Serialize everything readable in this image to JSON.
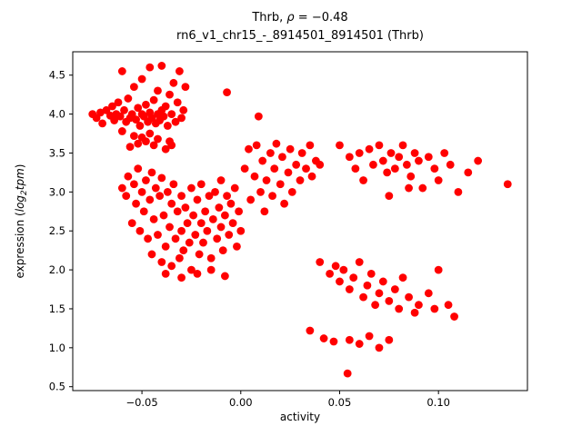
{
  "chart_data": {
    "type": "scatter",
    "title_parts": {
      "prefix": "Thrb, ",
      "rho": "ρ",
      "suffix": " = −0.48"
    },
    "subtitle": "rn6_v1_chr15_-_8914501_8914501 (Thrb)",
    "xlabel": "activity",
    "ylabel_parts": {
      "prefix": "expression (",
      "math": "log",
      "sub": "2",
      "math2": "tpm",
      "suffix": ")"
    },
    "xlim": [
      -0.085,
      0.145
    ],
    "ylim": [
      0.45,
      4.8
    ],
    "x_ticks": [
      {
        "v": -0.05,
        "label": "−0.05"
      },
      {
        "v": 0.0,
        "label": "0.00"
      },
      {
        "v": 0.05,
        "label": "0.05"
      },
      {
        "v": 0.1,
        "label": "0.10"
      }
    ],
    "y_ticks": [
      {
        "v": 0.5,
        "label": "0.5"
      },
      {
        "v": 1.0,
        "label": "1.0"
      },
      {
        "v": 1.5,
        "label": "1.5"
      },
      {
        "v": 2.0,
        "label": "2.0"
      },
      {
        "v": 2.5,
        "label": "2.5"
      },
      {
        "v": 3.0,
        "label": "3.0"
      },
      {
        "v": 3.5,
        "label": "3.5"
      },
      {
        "v": 4.0,
        "label": "4.0"
      },
      {
        "v": 4.5,
        "label": "4.5"
      }
    ],
    "grid": false,
    "legend": "none",
    "marker_color": "#ff0000",
    "marker_radius": 4.4,
    "points": [
      [
        -0.075,
        4.0
      ],
      [
        -0.073,
        3.95
      ],
      [
        -0.071,
        4.02
      ],
      [
        -0.07,
        3.88
      ],
      [
        -0.068,
        4.05
      ],
      [
        -0.066,
        3.98
      ],
      [
        -0.065,
        4.1
      ],
      [
        -0.064,
        3.92
      ],
      [
        -0.063,
        4.0
      ],
      [
        -0.062,
        4.15
      ],
      [
        -0.061,
        3.97
      ],
      [
        -0.06,
        4.55
      ],
      [
        -0.059,
        4.05
      ],
      [
        -0.058,
        3.9
      ],
      [
        -0.057,
        4.2
      ],
      [
        -0.056,
        3.95
      ],
      [
        -0.055,
        4.0
      ],
      [
        -0.054,
        4.35
      ],
      [
        -0.053,
        3.93
      ],
      [
        -0.052,
        4.08
      ],
      [
        -0.051,
        3.85
      ],
      [
        -0.05,
        4.0
      ],
      [
        -0.05,
        4.45
      ],
      [
        -0.049,
        3.97
      ],
      [
        -0.048,
        4.12
      ],
      [
        -0.047,
        3.9
      ],
      [
        -0.046,
        4.6
      ],
      [
        -0.046,
        4.02
      ],
      [
        -0.045,
        3.95
      ],
      [
        -0.044,
        4.18
      ],
      [
        -0.043,
        3.88
      ],
      [
        -0.042,
        4.3
      ],
      [
        -0.042,
        4.0
      ],
      [
        -0.041,
        3.92
      ],
      [
        -0.04,
        4.62
      ],
      [
        -0.04,
        4.05
      ],
      [
        -0.039,
        3.97
      ],
      [
        -0.038,
        4.1
      ],
      [
        -0.037,
        3.85
      ],
      [
        -0.036,
        4.25
      ],
      [
        -0.035,
        4.0
      ],
      [
        -0.034,
        4.4
      ],
      [
        -0.033,
        3.9
      ],
      [
        -0.032,
        4.15
      ],
      [
        -0.031,
        4.55
      ],
      [
        -0.03,
        3.95
      ],
      [
        -0.029,
        4.05
      ],
      [
        -0.028,
        4.35
      ],
      [
        -0.05,
        3.7
      ],
      [
        -0.048,
        3.65
      ],
      [
        -0.046,
        3.75
      ],
      [
        -0.044,
        3.6
      ],
      [
        -0.042,
        3.68
      ],
      [
        -0.052,
        3.62
      ],
      [
        -0.054,
        3.72
      ],
      [
        -0.056,
        3.58
      ],
      [
        -0.038,
        3.55
      ],
      [
        -0.036,
        3.65
      ],
      [
        -0.06,
        3.78
      ],
      [
        -0.035,
        3.6
      ],
      [
        -0.007,
        4.28
      ],
      [
        0.009,
        3.97
      ],
      [
        -0.06,
        3.05
      ],
      [
        -0.058,
        2.95
      ],
      [
        -0.057,
        3.2
      ],
      [
        -0.055,
        2.6
      ],
      [
        -0.054,
        3.1
      ],
      [
        -0.053,
        2.85
      ],
      [
        -0.052,
        3.3
      ],
      [
        -0.051,
        2.5
      ],
      [
        -0.05,
        3.0
      ],
      [
        -0.049,
        2.75
      ],
      [
        -0.048,
        3.15
      ],
      [
        -0.047,
        2.4
      ],
      [
        -0.046,
        2.9
      ],
      [
        -0.045,
        3.25
      ],
      [
        -0.045,
        2.2
      ],
      [
        -0.044,
        2.65
      ],
      [
        -0.043,
        3.05
      ],
      [
        -0.042,
        2.45
      ],
      [
        -0.041,
        2.95
      ],
      [
        -0.04,
        2.1
      ],
      [
        -0.04,
        3.18
      ],
      [
        -0.039,
        2.7
      ],
      [
        -0.038,
        2.3
      ],
      [
        -0.037,
        3.0
      ],
      [
        -0.036,
        2.55
      ],
      [
        -0.035,
        2.85
      ],
      [
        -0.035,
        2.05
      ],
      [
        -0.034,
        3.1
      ],
      [
        -0.033,
        2.4
      ],
      [
        -0.032,
        2.75
      ],
      [
        -0.031,
        2.15
      ],
      [
        -0.03,
        2.95
      ],
      [
        -0.03,
        2.5
      ],
      [
        -0.029,
        2.25
      ],
      [
        -0.028,
        2.8
      ],
      [
        -0.027,
        2.6
      ],
      [
        -0.026,
        2.35
      ],
      [
        -0.025,
        3.05
      ],
      [
        -0.025,
        2.0
      ],
      [
        -0.024,
        2.7
      ],
      [
        -0.023,
        2.45
      ],
      [
        -0.022,
        2.9
      ],
      [
        -0.021,
        2.2
      ],
      [
        -0.02,
        2.6
      ],
      [
        -0.02,
        3.1
      ],
      [
        -0.019,
        2.35
      ],
      [
        -0.018,
        2.75
      ],
      [
        -0.017,
        2.5
      ],
      [
        -0.016,
        2.95
      ],
      [
        -0.015,
        2.15
      ],
      [
        -0.014,
        2.65
      ],
      [
        -0.013,
        3.0
      ],
      [
        -0.012,
        2.4
      ],
      [
        -0.011,
        2.8
      ],
      [
        -0.01,
        2.55
      ],
      [
        -0.01,
        3.15
      ],
      [
        -0.009,
        2.25
      ],
      [
        -0.008,
        2.7
      ],
      [
        -0.007,
        2.95
      ],
      [
        -0.006,
        2.45
      ],
      [
        -0.005,
        2.85
      ],
      [
        -0.004,
        2.6
      ],
      [
        -0.003,
        3.05
      ],
      [
        -0.002,
        2.3
      ],
      [
        -0.001,
        2.75
      ],
      [
        0.0,
        2.5
      ],
      [
        -0.038,
        1.95
      ],
      [
        -0.03,
        1.9
      ],
      [
        -0.022,
        1.95
      ],
      [
        -0.015,
        2.0
      ],
      [
        -0.008,
        1.92
      ],
      [
        0.002,
        3.3
      ],
      [
        0.004,
        3.55
      ],
      [
        0.005,
        2.9
      ],
      [
        0.007,
        3.2
      ],
      [
        0.008,
        3.6
      ],
      [
        0.01,
        3.0
      ],
      [
        0.011,
        3.4
      ],
      [
        0.012,
        2.75
      ],
      [
        0.013,
        3.15
      ],
      [
        0.015,
        3.5
      ],
      [
        0.016,
        2.95
      ],
      [
        0.017,
        3.3
      ],
      [
        0.018,
        3.62
      ],
      [
        0.02,
        3.1
      ],
      [
        0.021,
        3.45
      ],
      [
        0.022,
        2.85
      ],
      [
        0.024,
        3.25
      ],
      [
        0.025,
        3.55
      ],
      [
        0.026,
        3.0
      ],
      [
        0.028,
        3.35
      ],
      [
        0.03,
        3.15
      ],
      [
        0.031,
        3.5
      ],
      [
        0.033,
        3.3
      ],
      [
        0.035,
        3.6
      ],
      [
        0.036,
        3.2
      ],
      [
        0.038,
        3.4
      ],
      [
        0.04,
        3.35
      ],
      [
        0.05,
        3.6
      ],
      [
        0.055,
        3.45
      ],
      [
        0.058,
        3.3
      ],
      [
        0.06,
        3.5
      ],
      [
        0.062,
        3.15
      ],
      [
        0.065,
        3.55
      ],
      [
        0.067,
        3.35
      ],
      [
        0.07,
        3.6
      ],
      [
        0.072,
        3.4
      ],
      [
        0.074,
        3.25
      ],
      [
        0.076,
        3.5
      ],
      [
        0.078,
        3.3
      ],
      [
        0.08,
        3.45
      ],
      [
        0.082,
        3.6
      ],
      [
        0.084,
        3.35
      ],
      [
        0.086,
        3.2
      ],
      [
        0.088,
        3.5
      ],
      [
        0.09,
        3.4
      ],
      [
        0.092,
        3.05
      ],
      [
        0.095,
        3.45
      ],
      [
        0.098,
        3.3
      ],
      [
        0.1,
        3.15
      ],
      [
        0.103,
        3.5
      ],
      [
        0.106,
        3.35
      ],
      [
        0.11,
        3.0
      ],
      [
        0.115,
        3.25
      ],
      [
        0.12,
        3.4
      ],
      [
        0.135,
        3.1
      ],
      [
        0.075,
        2.95
      ],
      [
        0.085,
        3.05
      ],
      [
        0.04,
        2.1
      ],
      [
        0.045,
        1.95
      ],
      [
        0.048,
        2.05
      ],
      [
        0.05,
        1.85
      ],
      [
        0.052,
        2.0
      ],
      [
        0.055,
        1.75
      ],
      [
        0.057,
        1.9
      ],
      [
        0.06,
        2.1
      ],
      [
        0.062,
        1.65
      ],
      [
        0.064,
        1.8
      ],
      [
        0.066,
        1.95
      ],
      [
        0.068,
        1.55
      ],
      [
        0.07,
        1.7
      ],
      [
        0.072,
        1.85
      ],
      [
        0.075,
        1.6
      ],
      [
        0.078,
        1.75
      ],
      [
        0.08,
        1.5
      ],
      [
        0.082,
        1.9
      ],
      [
        0.085,
        1.65
      ],
      [
        0.088,
        1.45
      ],
      [
        0.09,
        1.55
      ],
      [
        0.095,
        1.7
      ],
      [
        0.098,
        1.5
      ],
      [
        0.1,
        2.0
      ],
      [
        0.105,
        1.55
      ],
      [
        0.108,
        1.4
      ],
      [
        0.055,
        1.1
      ],
      [
        0.06,
        1.05
      ],
      [
        0.065,
        1.15
      ],
      [
        0.07,
        1.0
      ],
      [
        0.075,
        1.1
      ],
      [
        0.047,
        1.08
      ],
      [
        0.035,
        1.22
      ],
      [
        0.054,
        0.67
      ],
      [
        0.042,
        1.12
      ]
    ]
  }
}
